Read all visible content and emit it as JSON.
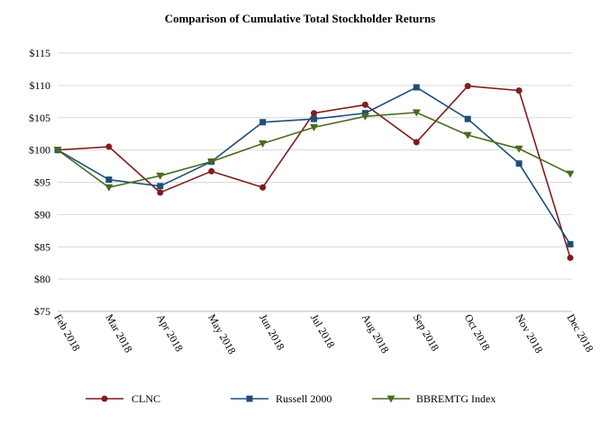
{
  "chart_data": {
    "type": "line",
    "title": "Comparison of Cumulative Total Stockholder Returns",
    "xlabel": "",
    "ylabel": "",
    "categories": [
      "Feb 2018",
      "Mar 2018",
      "Apr 2018",
      "May 2018",
      "Jun 2018",
      "Jul 2018",
      "Aug 2018",
      "Sep 2018",
      "Oct 2018",
      "Nov 2018",
      "Dec 2018"
    ],
    "ylim": [
      75,
      115
    ],
    "yticks": [
      75,
      80,
      85,
      90,
      95,
      100,
      105,
      110,
      115
    ],
    "ytick_labels": [
      "$75",
      "$80",
      "$85",
      "$90",
      "$95",
      "$100",
      "$105",
      "$110",
      "$115"
    ],
    "grid": true,
    "legend_position": "bottom",
    "series": [
      {
        "name": "CLNC",
        "color": "#7f1d1d",
        "marker": "circle",
        "values": [
          100.0,
          100.5,
          93.4,
          96.7,
          94.2,
          105.7,
          107.0,
          101.2,
          109.9,
          109.2,
          83.3
        ]
      },
      {
        "name": "Russell 2000",
        "color": "#1f4e79",
        "marker": "square",
        "values": [
          100.0,
          95.4,
          94.4,
          98.2,
          104.3,
          104.8,
          105.7,
          109.7,
          104.8,
          97.9,
          85.4
        ]
      },
      {
        "name": "BBREMTG Index",
        "color": "#4a6b1e",
        "marker": "triangle-down",
        "values": [
          100.0,
          94.2,
          96.0,
          98.2,
          101.0,
          103.5,
          105.2,
          105.8,
          102.3,
          100.2,
          96.3
        ]
      }
    ]
  }
}
